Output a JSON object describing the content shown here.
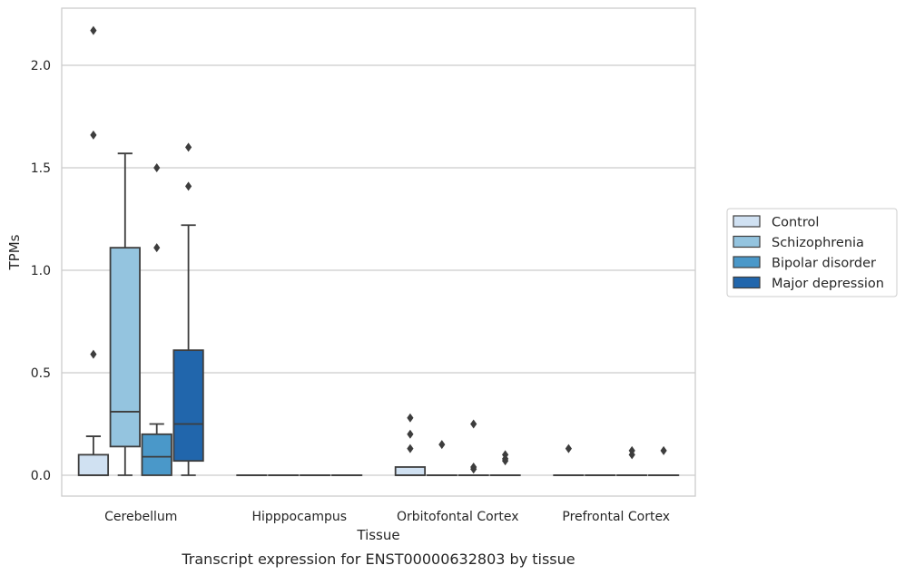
{
  "caption": "Transcript expression for ENST00000632803 by tissue",
  "chart_data": {
    "type": "box",
    "xlabel": "Tissue",
    "ylabel": "TPMs",
    "ylim": [
      -0.1,
      2.28
    ],
    "yticks": [
      0.0,
      0.5,
      1.0,
      1.5,
      2.0
    ],
    "ytick_labels": [
      "0.0",
      "0.5",
      "1.0",
      "1.5",
      "2.0"
    ],
    "grid": "horizontal",
    "legend_position": "right",
    "categories": [
      "Cerebellum",
      "Hipppocampus",
      "Orbitofontal Cortex",
      "Prefrontal Cortex"
    ],
    "series": [
      {
        "name": "Control",
        "color": "#d0e1f2",
        "boxes": [
          {
            "q1": 0.0,
            "median": 0.0,
            "q3": 0.1,
            "whislo": 0.0,
            "whishi": 0.19,
            "fliers": [
              0.59,
              1.66,
              2.17
            ]
          },
          {
            "q1": 0.0,
            "median": 0.0,
            "q3": 0.0,
            "whislo": 0.0,
            "whishi": 0.0,
            "fliers": []
          },
          {
            "q1": 0.0,
            "median": 0.0,
            "q3": 0.04,
            "whislo": 0.0,
            "whishi": 0.04,
            "fliers": [
              0.13,
              0.2,
              0.28
            ]
          },
          {
            "q1": 0.0,
            "median": 0.0,
            "q3": 0.0,
            "whislo": 0.0,
            "whishi": 0.0,
            "fliers": [
              0.13
            ]
          }
        ]
      },
      {
        "name": "Schizophrenia",
        "color": "#94c4df",
        "boxes": [
          {
            "q1": 0.14,
            "median": 0.31,
            "q3": 1.11,
            "whislo": 0.0,
            "whishi": 1.57,
            "fliers": []
          },
          {
            "q1": 0.0,
            "median": 0.0,
            "q3": 0.0,
            "whislo": 0.0,
            "whishi": 0.0,
            "fliers": []
          },
          {
            "q1": 0.0,
            "median": 0.0,
            "q3": 0.0,
            "whislo": 0.0,
            "whishi": 0.0,
            "fliers": [
              0.15
            ]
          },
          {
            "q1": 0.0,
            "median": 0.0,
            "q3": 0.0,
            "whislo": 0.0,
            "whishi": 0.0,
            "fliers": []
          }
        ]
      },
      {
        "name": "Bipolar disorder",
        "color": "#4a98c9",
        "boxes": [
          {
            "q1": 0.0,
            "median": 0.09,
            "q3": 0.2,
            "whislo": 0.0,
            "whishi": 0.25,
            "fliers": [
              1.11,
              1.5
            ]
          },
          {
            "q1": 0.0,
            "median": 0.0,
            "q3": 0.0,
            "whislo": 0.0,
            "whishi": 0.0,
            "fliers": []
          },
          {
            "q1": 0.0,
            "median": 0.0,
            "q3": 0.0,
            "whislo": 0.0,
            "whishi": 0.0,
            "fliers": [
              0.03,
              0.04,
              0.25
            ]
          },
          {
            "q1": 0.0,
            "median": 0.0,
            "q3": 0.0,
            "whislo": 0.0,
            "whishi": 0.0,
            "fliers": [
              0.1,
              0.12
            ]
          }
        ]
      },
      {
        "name": "Major depression",
        "color": "#2166ac",
        "boxes": [
          {
            "q1": 0.07,
            "median": 0.25,
            "q3": 0.61,
            "whislo": 0.0,
            "whishi": 1.22,
            "fliers": [
              1.41,
              1.6
            ]
          },
          {
            "q1": 0.0,
            "median": 0.0,
            "q3": 0.0,
            "whislo": 0.0,
            "whishi": 0.0,
            "fliers": []
          },
          {
            "q1": 0.0,
            "median": 0.0,
            "q3": 0.0,
            "whislo": 0.0,
            "whishi": 0.0,
            "fliers": [
              0.07,
              0.08,
              0.1
            ]
          },
          {
            "q1": 0.0,
            "median": 0.0,
            "q3": 0.0,
            "whislo": 0.0,
            "whishi": 0.0,
            "fliers": [
              0.12
            ]
          }
        ]
      }
    ]
  }
}
